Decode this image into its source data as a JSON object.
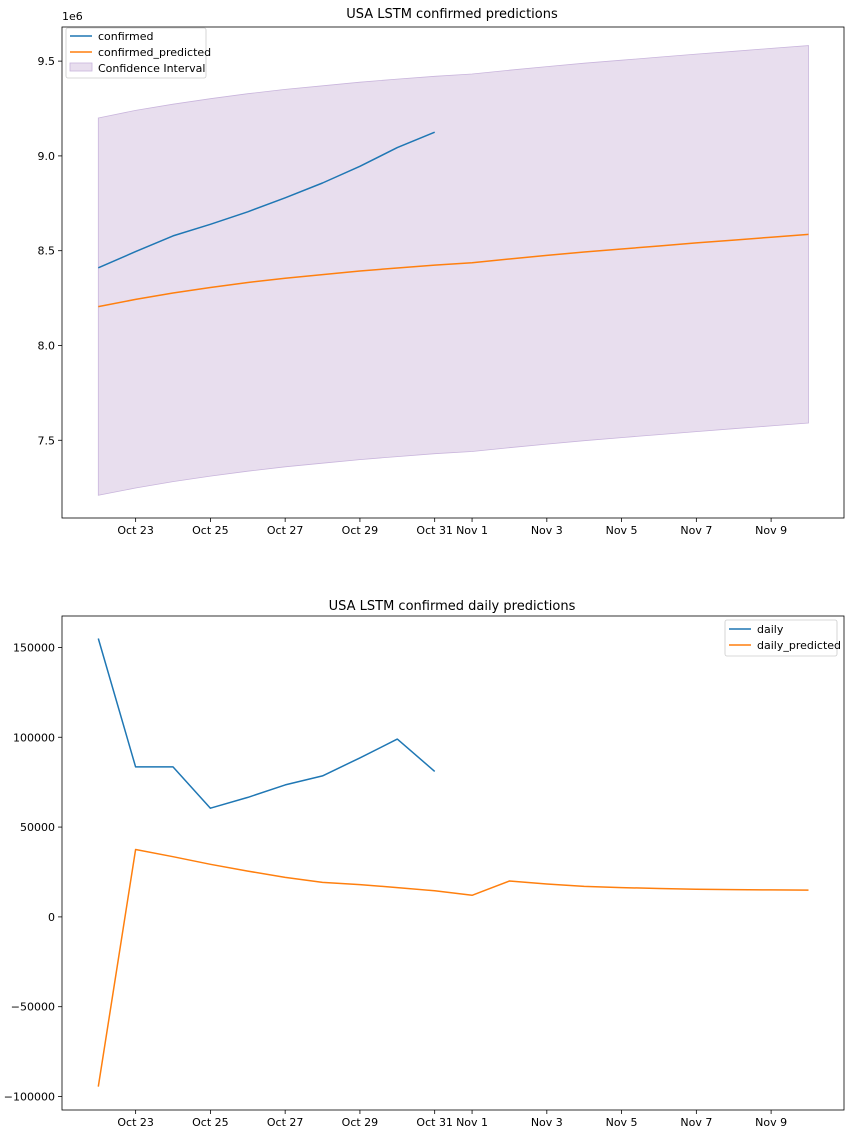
{
  "chart_data": [
    {
      "type": "line",
      "title": "USA LSTM confirmed predictions",
      "xlabel": "",
      "ylabel": "",
      "y_offset_label": "1e6",
      "x_tick_labels": [
        "Oct 23",
        "Oct 25",
        "Oct 27",
        "Oct 29",
        "Oct 31",
        "Nov 1",
        "Nov 3",
        "Nov 5",
        "Nov 7",
        "Nov 9"
      ],
      "y_ticks": [
        7.5,
        8.0,
        8.5,
        9.0,
        9.5
      ],
      "y_tick_labels": [
        "7.5",
        "8.0",
        "8.5",
        "9.0",
        "9.5"
      ],
      "xlim": [
        0,
        20
      ],
      "ylim": [
        7.09,
        9.68
      ],
      "legend_position": "top-left",
      "series": [
        {
          "name": "confirmed",
          "color": "#1f77b4",
          "x": [
            1,
            2,
            3,
            4,
            5,
            6,
            7,
            8,
            9,
            10
          ],
          "values": [
            8.41,
            8.495,
            8.578,
            8.639,
            8.705,
            8.779,
            8.857,
            8.945,
            9.044,
            9.125
          ]
        },
        {
          "name": "confirmed_predicted",
          "color": "#ff7f0e",
          "x": [
            1,
            2,
            3,
            4,
            5,
            6,
            7,
            8,
            9,
            10,
            11,
            12,
            13,
            14,
            15,
            16,
            17,
            18,
            19,
            20
          ],
          "values": [
            8.205,
            8.243,
            8.277,
            8.306,
            8.332,
            8.355,
            8.374,
            8.393,
            8.409,
            8.424,
            8.436,
            8.456,
            8.475,
            8.493,
            8.509,
            8.525,
            8.541,
            8.556,
            8.571,
            8.586
          ]
        }
      ],
      "confidence_interval": {
        "name": "Confidence Interval",
        "color": "#e8deee",
        "edge_color": "#c9b5dc",
        "x": [
          1,
          2,
          3,
          4,
          5,
          6,
          7,
          8,
          9,
          10,
          11,
          12,
          13,
          14,
          15,
          16,
          17,
          18,
          19,
          20
        ],
        "upper": [
          9.2,
          9.24,
          9.273,
          9.302,
          9.328,
          9.351,
          9.37,
          9.389,
          9.405,
          9.42,
          9.432,
          9.452,
          9.471,
          9.489,
          9.505,
          9.521,
          9.537,
          9.552,
          9.567,
          9.582
        ],
        "lower": [
          7.21,
          7.248,
          7.282,
          7.311,
          7.337,
          7.36,
          7.379,
          7.398,
          7.414,
          7.429,
          7.441,
          7.461,
          7.48,
          7.498,
          7.514,
          7.53,
          7.546,
          7.561,
          7.576,
          7.591
        ]
      }
    },
    {
      "type": "line",
      "title": "USA LSTM confirmed daily predictions",
      "xlabel": "",
      "ylabel": "",
      "x_tick_labels": [
        "Oct 23",
        "Oct 25",
        "Oct 27",
        "Oct 29",
        "Oct 31",
        "Nov 1",
        "Nov 3",
        "Nov 5",
        "Nov 7",
        "Nov 9"
      ],
      "y_ticks": [
        -100000,
        -50000,
        0,
        50000,
        100000,
        150000
      ],
      "y_tick_labels": [
        "−100000",
        "−50000",
        "0",
        "50000",
        "100000",
        "150000"
      ],
      "xlim": [
        0,
        20
      ],
      "ylim": [
        -107500,
        167500
      ],
      "legend_position": "top-right",
      "series": [
        {
          "name": "daily",
          "color": "#1f77b4",
          "x": [
            1,
            2,
            3,
            4,
            5,
            6,
            7,
            8,
            9,
            10
          ],
          "values": [
            155000,
            83500,
            83500,
            60500,
            66500,
            73500,
            78500,
            88500,
            99000,
            81000
          ]
        },
        {
          "name": "daily_predicted",
          "color": "#ff7f0e",
          "x": [
            1,
            2,
            3,
            4,
            5,
            6,
            7,
            8,
            9,
            10,
            11,
            12,
            13,
            14,
            15,
            16,
            17,
            18,
            19,
            20
          ],
          "values": [
            -94500,
            37500,
            33500,
            29300,
            25500,
            22000,
            19200,
            18000,
            16300,
            14500,
            12000,
            20000,
            18300,
            17000,
            16300,
            15800,
            15400,
            15200,
            15000,
            14900
          ]
        }
      ]
    }
  ]
}
